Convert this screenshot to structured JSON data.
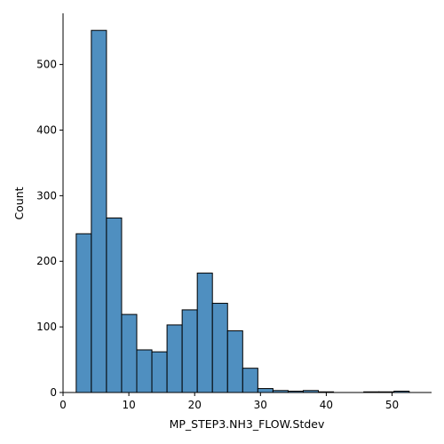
{
  "chart_data": {
    "type": "bar",
    "subtype": "histogram",
    "xlabel": "MP_STEP3.NH3_FLOW.Stdev",
    "ylabel": "Count",
    "xlim": [
      0,
      56
    ],
    "ylim": [
      0,
      578
    ],
    "xticks": [
      0,
      10,
      20,
      30,
      40,
      50
    ],
    "yticks": [
      0,
      100,
      200,
      300,
      400,
      500
    ],
    "grid": false,
    "bar_color": "#4f8fc0",
    "bins": [
      {
        "x0": 2.0,
        "x1": 4.3,
        "count": 242
      },
      {
        "x0": 4.3,
        "x1": 6.6,
        "count": 552
      },
      {
        "x0": 6.6,
        "x1": 8.9,
        "count": 266
      },
      {
        "x0": 8.9,
        "x1": 11.2,
        "count": 119
      },
      {
        "x0": 11.2,
        "x1": 13.5,
        "count": 65
      },
      {
        "x0": 13.5,
        "x1": 15.8,
        "count": 62
      },
      {
        "x0": 15.8,
        "x1": 18.1,
        "count": 103
      },
      {
        "x0": 18.1,
        "x1": 20.4,
        "count": 126
      },
      {
        "x0": 20.4,
        "x1": 22.7,
        "count": 182
      },
      {
        "x0": 22.7,
        "x1": 25.0,
        "count": 136
      },
      {
        "x0": 25.0,
        "x1": 27.3,
        "count": 94
      },
      {
        "x0": 27.3,
        "x1": 29.6,
        "count": 37
      },
      {
        "x0": 29.6,
        "x1": 31.9,
        "count": 6
      },
      {
        "x0": 31.9,
        "x1": 34.2,
        "count": 3
      },
      {
        "x0": 34.2,
        "x1": 36.5,
        "count": 2
      },
      {
        "x0": 36.5,
        "x1": 38.8,
        "count": 3
      },
      {
        "x0": 38.8,
        "x1": 41.1,
        "count": 1
      },
      {
        "x0": 41.1,
        "x1": 43.4,
        "count": 0
      },
      {
        "x0": 43.4,
        "x1": 45.7,
        "count": 0
      },
      {
        "x0": 45.7,
        "x1": 48.0,
        "count": 1
      },
      {
        "x0": 48.0,
        "x1": 50.3,
        "count": 1
      },
      {
        "x0": 50.3,
        "x1": 52.6,
        "count": 2
      }
    ]
  }
}
